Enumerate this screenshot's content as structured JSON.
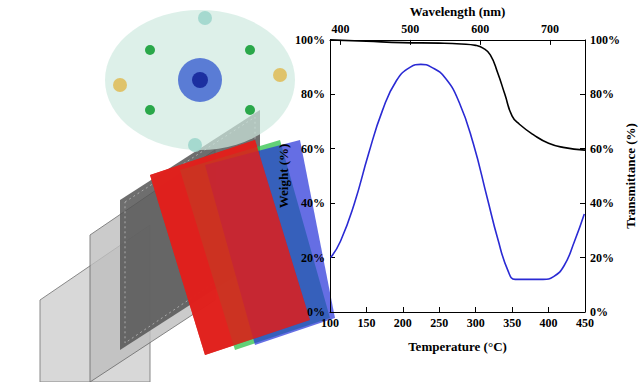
{
  "chart_data": {
    "type": "line",
    "xlabel": "Temperature (°C)",
    "ylabel": "Weight (%)",
    "x2label": "Wavelength (nm)",
    "y2label": "Transmittance (%)",
    "xlim": [
      100,
      450
    ],
    "xticks": [
      100,
      150,
      200,
      250,
      300,
      350,
      400,
      450
    ],
    "x2lim": [
      385,
      750
    ],
    "x2ticks": [
      400,
      500,
      600,
      700
    ],
    "ylim": [
      0,
      100
    ],
    "yticks": [
      {
        "value": 0,
        "label": "0%"
      },
      {
        "value": 20,
        "label": "20%"
      },
      {
        "value": 40,
        "label": "40%"
      },
      {
        "value": 60,
        "label": "60%"
      },
      {
        "value": 80,
        "label": "80%"
      },
      {
        "value": 100,
        "label": "100%"
      }
    ],
    "y2lim": [
      0,
      100
    ],
    "y2ticks": [
      {
        "value": 0,
        "label": "0%"
      },
      {
        "value": 20,
        "label": "20%"
      },
      {
        "value": 40,
        "label": "40%"
      },
      {
        "value": 60,
        "label": "60%"
      },
      {
        "value": 80,
        "label": "80%"
      },
      {
        "value": 100,
        "label": "100%"
      }
    ],
    "grid": false,
    "series": [
      {
        "color": "#000000",
        "x": [
          100,
          150,
          200,
          250,
          280,
          300,
          310,
          320,
          330,
          340,
          350,
          360,
          380,
          400,
          420,
          450
        ],
        "values": [
          100,
          99.5,
          99,
          98.8,
          98.5,
          98,
          97,
          94.5,
          88,
          80,
          72,
          69,
          65,
          62,
          60.5,
          59.5
        ]
      },
      {
        "color": "#2a2ad4",
        "axis": "y2",
        "x": [
          386,
          400,
          420,
          440,
          460,
          480,
          500,
          515,
          530,
          550,
          570,
          590,
          610,
          625,
          640,
          650,
          670,
          690,
          705,
          720,
          735,
          749
        ],
        "values": [
          20,
          26,
          40,
          58,
          74,
          85,
          90,
          91,
          90,
          86,
          77,
          62,
          42,
          27,
          15,
          12,
          12,
          12,
          13,
          17,
          26,
          36
        ]
      }
    ]
  }
}
